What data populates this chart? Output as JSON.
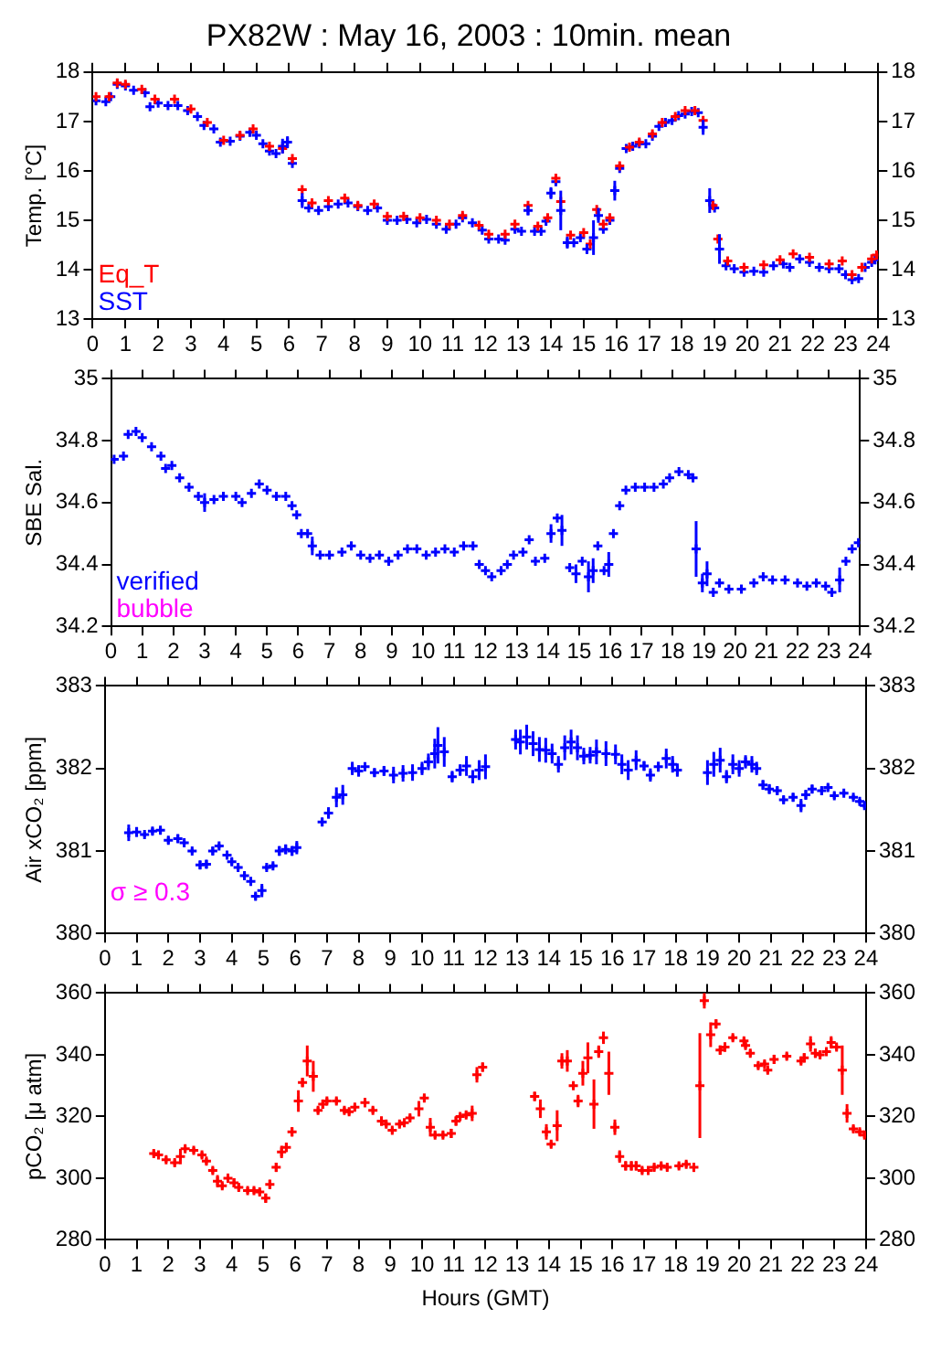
{
  "chart_data": [
    {
      "type": "scatter",
      "title": "PX82W : May 16, 2003 : 10min. mean",
      "ylabel": "Temp. [°C]",
      "xlim": [
        0,
        24
      ],
      "xticks": [
        0,
        1,
        2,
        3,
        4,
        5,
        6,
        7,
        8,
        9,
        10,
        11,
        12,
        13,
        14,
        15,
        16,
        17,
        18,
        19,
        20,
        21,
        22,
        23,
        24
      ],
      "ylim": [
        13,
        18
      ],
      "yticks": [
        13,
        14,
        15,
        16,
        17,
        18
      ],
      "y2lim": [
        13,
        18
      ],
      "y2ticks": [
        13,
        14,
        15,
        16,
        17,
        18
      ],
      "grid": false,
      "legend": "bottom left",
      "marker": "cross",
      "series": [
        {
          "name": "Eq_T",
          "color": "#ff0000",
          "x": [
            0.1,
            0.5,
            0.75,
            1.0,
            1.5,
            1.9,
            2.5,
            3.0,
            3.5,
            4.0,
            4.5,
            4.9,
            5.4,
            5.8,
            6.1,
            6.4,
            6.7,
            7.2,
            7.7,
            8.1,
            8.6,
            9.0,
            9.5,
            10.0,
            10.5,
            10.9,
            11.3,
            11.8,
            12.1,
            12.6,
            12.9,
            13.3,
            13.6,
            13.9,
            14.15,
            14.3,
            14.6,
            15.0,
            15.2,
            15.4,
            15.6,
            15.8,
            16.1,
            16.4,
            16.7,
            17.1,
            17.4,
            17.8,
            18.1,
            18.4,
            18.65,
            18.95,
            19.1,
            19.4,
            19.9,
            20.5,
            21.0,
            21.4,
            21.9,
            22.5,
            22.9,
            23.2,
            23.5,
            23.8,
            23.95
          ],
          "values": [
            17.5,
            17.5,
            17.78,
            17.75,
            17.65,
            17.45,
            17.45,
            17.25,
            16.98,
            16.62,
            16.72,
            16.85,
            16.5,
            16.45,
            16.25,
            15.62,
            15.35,
            15.4,
            15.45,
            15.3,
            15.33,
            15.08,
            15.08,
            15.05,
            15.0,
            14.92,
            15.1,
            14.9,
            14.72,
            14.72,
            14.92,
            15.3,
            14.88,
            15.05,
            15.85,
            15.38,
            14.7,
            14.75,
            14.52,
            15.22,
            14.92,
            15.05,
            16.1,
            16.48,
            16.58,
            16.75,
            16.98,
            17.1,
            17.22,
            17.22,
            17.02,
            15.3,
            14.62,
            14.18,
            14.05,
            14.1,
            14.2,
            14.32,
            14.25,
            14.12,
            14.18,
            13.9,
            14.05,
            14.22,
            14.3
          ]
        },
        {
          "name": "SST",
          "color": "#0000ff",
          "x": [
            0.1,
            0.4,
            0.55,
            0.75,
            1.0,
            1.25,
            1.6,
            1.75,
            2.0,
            2.3,
            2.6,
            2.9,
            3.2,
            3.4,
            3.7,
            3.9,
            4.2,
            4.5,
            4.8,
            5.0,
            5.2,
            5.4,
            5.6,
            5.8,
            5.95,
            6.1,
            6.4,
            6.6,
            6.9,
            7.2,
            7.5,
            7.8,
            8.1,
            8.4,
            8.7,
            9.0,
            9.3,
            9.6,
            9.9,
            10.2,
            10.5,
            10.8,
            11.1,
            11.3,
            11.6,
            11.9,
            12.1,
            12.4,
            12.6,
            12.9,
            13.1,
            13.3,
            13.5,
            13.7,
            13.85,
            14.0,
            14.15,
            14.3,
            14.5,
            14.7,
            14.9,
            15.1,
            15.3,
            15.45,
            15.6,
            15.8,
            15.95,
            16.1,
            16.3,
            16.5,
            16.7,
            16.9,
            17.1,
            17.3,
            17.5,
            17.7,
            17.9,
            18.1,
            18.3,
            18.5,
            18.65,
            18.85,
            19.0,
            19.15,
            19.35,
            19.6,
            19.9,
            20.2,
            20.5,
            20.8,
            21.1,
            21.3,
            21.6,
            21.9,
            22.2,
            22.5,
            22.8,
            23.0,
            23.2,
            23.4,
            23.6,
            23.8,
            23.9
          ],
          "values": [
            17.42,
            17.4,
            17.5,
            17.75,
            17.72,
            17.63,
            17.58,
            17.3,
            17.37,
            17.32,
            17.32,
            17.22,
            17.1,
            16.92,
            16.85,
            16.58,
            16.6,
            16.7,
            16.78,
            16.72,
            16.55,
            16.4,
            16.35,
            16.5,
            16.58,
            16.15,
            15.4,
            15.25,
            15.2,
            15.28,
            15.33,
            15.35,
            15.28,
            15.2,
            15.25,
            15.0,
            15.0,
            15.02,
            14.95,
            15.02,
            14.92,
            14.82,
            14.92,
            15.05,
            14.95,
            14.8,
            14.62,
            14.62,
            14.6,
            14.82,
            14.78,
            15.2,
            14.78,
            14.78,
            14.98,
            15.55,
            15.78,
            15.2,
            14.55,
            14.55,
            14.65,
            14.42,
            14.65,
            15.1,
            14.82,
            15.0,
            15.6,
            16.05,
            16.45,
            16.5,
            16.55,
            16.55,
            16.7,
            16.9,
            16.98,
            17.02,
            17.12,
            17.15,
            17.2,
            17.18,
            16.88,
            15.4,
            15.25,
            14.42,
            14.08,
            14.02,
            13.95,
            13.97,
            13.95,
            14.08,
            14.12,
            14.05,
            14.22,
            14.15,
            14.05,
            14.02,
            14.02,
            13.9,
            13.8,
            13.82,
            14.05,
            14.15,
            14.2
          ],
          "errors": [
            null,
            null,
            null,
            null,
            null,
            null,
            null,
            null,
            null,
            null,
            null,
            null,
            null,
            null,
            null,
            null,
            null,
            null,
            null,
            null,
            null,
            null,
            null,
            0.15,
            0.12,
            null,
            0.15,
            null,
            null,
            null,
            null,
            null,
            null,
            null,
            null,
            null,
            null,
            null,
            null,
            null,
            null,
            null,
            null,
            null,
            null,
            null,
            null,
            null,
            null,
            null,
            null,
            0.1,
            null,
            null,
            null,
            0.12,
            null,
            0.4,
            0.12,
            null,
            null,
            0.1,
            0.35,
            0.15,
            null,
            null,
            0.2,
            null,
            null,
            null,
            null,
            null,
            null,
            null,
            null,
            null,
            null,
            null,
            null,
            null,
            0.15,
            0.25,
            null,
            0.3,
            null,
            null,
            null,
            null,
            null,
            null,
            null,
            null,
            null,
            null,
            null,
            null,
            null,
            null,
            null,
            null,
            null,
            null,
            null
          ]
        }
      ]
    },
    {
      "type": "scatter",
      "ylabel": "SBE Sal.",
      "xlim": [
        0,
        24
      ],
      "xticks": [
        0,
        1,
        2,
        3,
        4,
        5,
        6,
        7,
        8,
        9,
        10,
        11,
        12,
        13,
        14,
        15,
        16,
        17,
        18,
        19,
        20,
        21,
        22,
        23,
        24
      ],
      "ylim": [
        34.2,
        35
      ],
      "yticks": [
        {
          "value": 34.2,
          "label": "34.2"
        },
        {
          "value": 34.4,
          "label": "34.4"
        },
        {
          "value": 34.6,
          "label": "34.6"
        },
        {
          "value": 34.8,
          "label": "34.8"
        },
        35
      ],
      "y2lim": [
        34.2,
        35
      ],
      "y2ticks": [
        {
          "value": 34.2,
          "label": "34.2"
        },
        {
          "value": 34.4,
          "label": "34.4"
        },
        {
          "value": 34.6,
          "label": "34.6"
        },
        {
          "value": 34.8,
          "label": "34.8"
        },
        35
      ],
      "grid": false,
      "legend": "bottom left",
      "marker": "cross",
      "series": [
        {
          "name": "verified",
          "color": "#0000ff",
          "x": [
            0.1,
            0.4,
            0.55,
            0.8,
            1.0,
            1.3,
            1.6,
            1.75,
            1.95,
            2.2,
            2.5,
            2.8,
            3.0,
            3.3,
            3.6,
            4.0,
            4.2,
            4.5,
            4.75,
            5.0,
            5.3,
            5.6,
            5.8,
            5.95,
            6.1,
            6.3,
            6.45,
            6.7,
            7.0,
            7.4,
            7.7,
            8.0,
            8.3,
            8.6,
            8.9,
            9.2,
            9.5,
            9.8,
            10.1,
            10.4,
            10.7,
            11.0,
            11.3,
            11.6,
            11.8,
            12.0,
            12.2,
            12.5,
            12.7,
            12.9,
            13.2,
            13.4,
            13.6,
            13.9,
            14.1,
            14.3,
            14.45,
            14.7,
            14.9,
            15.1,
            15.3,
            15.45,
            15.6,
            15.8,
            15.95,
            16.1,
            16.3,
            16.5,
            16.8,
            17.1,
            17.4,
            17.7,
            17.9,
            18.2,
            18.5,
            18.65,
            18.75,
            18.95,
            19.1,
            19.3,
            19.5,
            19.8,
            20.2,
            20.6,
            20.9,
            21.2,
            21.6,
            22.0,
            22.3,
            22.6,
            22.9,
            23.1,
            23.35,
            23.55,
            23.75,
            23.95
          ],
          "values": [
            34.74,
            34.75,
            34.82,
            34.83,
            34.81,
            34.78,
            34.75,
            34.71,
            34.72,
            34.68,
            34.65,
            34.62,
            34.6,
            34.61,
            34.62,
            34.62,
            34.6,
            34.63,
            34.66,
            34.64,
            34.62,
            34.62,
            34.59,
            34.56,
            34.5,
            34.5,
            34.46,
            34.43,
            34.43,
            34.44,
            34.46,
            34.43,
            34.42,
            34.43,
            34.41,
            34.43,
            34.45,
            34.45,
            34.43,
            34.44,
            34.45,
            34.44,
            34.46,
            34.46,
            34.4,
            34.38,
            34.36,
            34.38,
            34.4,
            34.43,
            34.44,
            34.48,
            34.41,
            34.42,
            34.5,
            34.55,
            34.51,
            34.39,
            34.37,
            34.41,
            34.36,
            34.38,
            34.46,
            34.38,
            34.4,
            34.5,
            34.59,
            34.64,
            34.65,
            34.65,
            34.65,
            34.66,
            34.68,
            34.7,
            34.69,
            34.68,
            34.45,
            34.34,
            34.37,
            34.31,
            34.34,
            34.32,
            34.32,
            34.34,
            34.36,
            34.35,
            34.35,
            34.34,
            34.33,
            34.34,
            34.33,
            34.31,
            34.35,
            34.41,
            34.45,
            34.47
          ],
          "errors": [
            null,
            null,
            null,
            null,
            null,
            null,
            null,
            null,
            null,
            null,
            null,
            null,
            0.03,
            null,
            null,
            null,
            null,
            null,
            null,
            null,
            null,
            null,
            null,
            null,
            null,
            null,
            0.03,
            null,
            null,
            null,
            null,
            null,
            null,
            null,
            null,
            null,
            null,
            null,
            null,
            null,
            null,
            null,
            null,
            null,
            null,
            null,
            null,
            null,
            null,
            null,
            null,
            null,
            null,
            null,
            0.03,
            null,
            0.05,
            null,
            0.03,
            null,
            0.05,
            0.04,
            null,
            null,
            0.04,
            null,
            null,
            null,
            null,
            null,
            null,
            null,
            null,
            null,
            null,
            null,
            0.09,
            0.03,
            0.04,
            null,
            null,
            null,
            null,
            null,
            null,
            null,
            null,
            null,
            null,
            null,
            null,
            null,
            0.04,
            null,
            null,
            null
          ]
        },
        {
          "name": "bubble",
          "color": "#ff00ff"
        }
      ]
    },
    {
      "type": "scatter",
      "ylabel": "Air xCO₂ [ppm]",
      "xlim": [
        0,
        24
      ],
      "xticks": [
        0,
        1,
        2,
        3,
        4,
        5,
        6,
        7,
        8,
        9,
        10,
        11,
        12,
        13,
        14,
        15,
        16,
        17,
        18,
        19,
        20,
        21,
        22,
        23,
        24
      ],
      "ylim": [
        380,
        383
      ],
      "yticks": [
        380,
        381,
        382,
        383
      ],
      "y2lim": [
        380,
        383
      ],
      "y2ticks": [
        380,
        381,
        382,
        383
      ],
      "grid": false,
      "marker": "cross",
      "annotations": [
        "σ ≥ 0.3"
      ],
      "series": [
        {
          "color": "#0000ff",
          "x": [
            0.75,
            1.0,
            1.25,
            1.5,
            1.75,
            2.0,
            2.3,
            2.5,
            2.75,
            3.0,
            3.2,
            3.4,
            3.6,
            3.85,
            4.0,
            4.2,
            4.4,
            4.6,
            4.75,
            4.95,
            5.1,
            5.3,
            5.5,
            5.7,
            5.9,
            6.05,
            6.85,
            7.05,
            7.3,
            7.5,
            7.8,
            8.0,
            8.2,
            8.5,
            8.8,
            9.1,
            9.4,
            9.7,
            10.0,
            10.2,
            10.4,
            10.5,
            10.7,
            10.95,
            11.2,
            11.4,
            11.6,
            11.8,
            12.0,
            12.95,
            13.1,
            13.3,
            13.5,
            13.7,
            13.9,
            14.1,
            14.3,
            14.5,
            14.7,
            14.9,
            15.1,
            15.3,
            15.5,
            15.8,
            16.1,
            16.3,
            16.5,
            16.75,
            17.0,
            17.2,
            17.45,
            17.7,
            17.9,
            18.05,
            19.0,
            19.2,
            19.4,
            19.6,
            19.8,
            20.0,
            20.2,
            20.4,
            20.55,
            20.75,
            20.95,
            21.2,
            21.4,
            21.7,
            21.95,
            22.1,
            22.3,
            22.6,
            22.8,
            23.0,
            23.3,
            23.6,
            23.8,
            23.95
          ],
          "values": [
            381.22,
            381.23,
            381.2,
            381.24,
            381.25,
            381.13,
            381.15,
            381.1,
            381.0,
            380.83,
            380.84,
            381.0,
            381.06,
            380.95,
            380.87,
            380.8,
            380.7,
            380.63,
            380.45,
            380.52,
            380.8,
            380.82,
            381.0,
            381.02,
            381.0,
            381.04,
            381.35,
            381.46,
            381.65,
            381.68,
            382.0,
            381.97,
            382.02,
            381.95,
            381.97,
            381.92,
            381.94,
            381.95,
            382.0,
            382.08,
            382.18,
            382.28,
            382.2,
            381.9,
            381.98,
            382.03,
            381.9,
            381.98,
            382.02,
            382.35,
            382.32,
            382.38,
            382.3,
            382.23,
            382.22,
            382.18,
            382.05,
            382.25,
            382.32,
            382.25,
            382.15,
            382.16,
            382.2,
            382.18,
            382.17,
            382.05,
            381.98,
            382.1,
            382.03,
            381.92,
            382.02,
            382.12,
            382.05,
            381.98,
            381.95,
            382.05,
            382.1,
            381.9,
            382.05,
            382.0,
            382.08,
            382.05,
            382.0,
            381.8,
            381.75,
            381.73,
            381.62,
            381.65,
            381.55,
            381.68,
            381.75,
            381.73,
            381.77,
            381.67,
            381.7,
            381.65,
            381.6,
            381.55
          ],
          "errors": [
            0.1,
            0.06,
            0.03,
            0.04,
            0.04,
            0.04,
            0.05,
            0.03,
            0.03,
            0.05,
            0.05,
            0.05,
            0.03,
            0.03,
            0.04,
            0.03,
            0.04,
            0.04,
            0.04,
            0.08,
            0.03,
            0.03,
            0.06,
            0.06,
            0.06,
            0.08,
            0.05,
            0.07,
            0.12,
            0.12,
            0.08,
            0.07,
            0.05,
            0.05,
            0.06,
            0.1,
            0.1,
            0.1,
            0.08,
            0.1,
            0.18,
            0.22,
            0.18,
            0.07,
            0.07,
            0.12,
            0.08,
            0.12,
            0.15,
            0.12,
            0.15,
            0.15,
            0.15,
            0.15,
            0.15,
            0.12,
            0.1,
            0.15,
            0.15,
            0.15,
            0.1,
            0.1,
            0.15,
            0.15,
            0.12,
            0.12,
            0.12,
            0.12,
            0.06,
            0.08,
            0.06,
            0.12,
            0.1,
            0.08,
            0.15,
            0.15,
            0.15,
            0.08,
            0.12,
            0.1,
            0.08,
            0.1,
            0.08,
            0.06,
            0.06,
            0.05,
            0.04,
            0.05,
            0.08,
            0.06,
            0.05,
            0.05,
            0.04,
            0.04,
            0.03,
            0.03,
            0.03,
            0.03
          ]
        }
      ]
    },
    {
      "type": "scatter",
      "ylabel": "pCO₂ [μ atm]",
      "xlabel": "Hours (GMT)",
      "xlim": [
        0,
        24
      ],
      "xticks": [
        0,
        1,
        2,
        3,
        4,
        5,
        6,
        7,
        8,
        9,
        10,
        11,
        12,
        13,
        14,
        15,
        16,
        17,
        18,
        19,
        20,
        21,
        22,
        23,
        24
      ],
      "ylim": [
        280,
        360
      ],
      "yticks": [
        280,
        300,
        320,
        340,
        360
      ],
      "y2lim": [
        280,
        360
      ],
      "y2ticks": [
        280,
        300,
        320,
        340,
        360
      ],
      "grid": false,
      "marker": "cross",
      "series": [
        {
          "color": "#ff0000",
          "x": [
            1.54,
            1.69,
            1.93,
            2.2,
            2.38,
            2.53,
            2.8,
            3.06,
            3.2,
            3.4,
            3.55,
            3.7,
            3.88,
            4.07,
            4.22,
            4.5,
            4.7,
            4.88,
            5.07,
            5.2,
            5.4,
            5.57,
            5.72,
            5.9,
            6.1,
            6.23,
            6.38,
            6.57,
            6.72,
            6.87,
            7.0,
            7.3,
            7.55,
            7.7,
            7.88,
            8.2,
            8.45,
            8.72,
            8.87,
            9.06,
            9.29,
            9.44,
            9.62,
            9.9,
            10.07,
            10.26,
            10.41,
            10.66,
            10.92,
            11.07,
            11.2,
            11.39,
            11.58,
            11.73,
            11.91,
            13.55,
            13.73,
            13.92,
            14.07,
            14.26,
            14.41,
            14.58,
            14.77,
            14.92,
            15.07,
            15.23,
            15.42,
            15.57,
            15.72,
            15.89,
            16.08,
            16.23,
            16.42,
            16.6,
            16.75,
            16.94,
            17.13,
            17.32,
            17.54,
            17.73,
            18.1,
            18.33,
            18.57,
            18.76,
            18.9,
            19.1,
            19.27,
            19.4,
            19.55,
            19.8,
            20.15,
            20.2,
            20.35,
            20.6,
            20.8,
            20.9,
            21.1,
            21.5,
            21.95,
            22.05,
            22.25,
            22.4,
            22.55,
            22.75,
            22.9,
            23.07,
            23.25,
            23.4,
            23.6,
            23.8,
            23.95
          ],
          "values": [
            308,
            307.5,
            306,
            305,
            307,
            309.5,
            309,
            307.5,
            305.5,
            302.5,
            299,
            297.5,
            300,
            298.5,
            297,
            296,
            296,
            295.5,
            293.5,
            298,
            303.5,
            308.5,
            310,
            315,
            325,
            331,
            338,
            333,
            322,
            324,
            325,
            325,
            322,
            321.5,
            323,
            324.5,
            322,
            318.5,
            317.5,
            315.5,
            317.5,
            318,
            319.5,
            322.5,
            326,
            316.5,
            314,
            314,
            314.5,
            318.5,
            320,
            320.5,
            321,
            333.5,
            336,
            326.5,
            322.5,
            315,
            311,
            317,
            338,
            338,
            330,
            325,
            334,
            339,
            324,
            341,
            345.5,
            334,
            316.5,
            307,
            304,
            304,
            304,
            302.5,
            302.5,
            303.5,
            304,
            303.5,
            304,
            304.5,
            303.5,
            330,
            357.5,
            346.5,
            350,
            341.5,
            342.5,
            345.5,
            344.5,
            343,
            340.5,
            336.5,
            337,
            335,
            338.5,
            339.5,
            338,
            339,
            343.5,
            340.5,
            340,
            341,
            344,
            342.5,
            335,
            321,
            316,
            315,
            314
          ],
          "errors": [
            1,
            1,
            1,
            1,
            2.5,
            1,
            1,
            1,
            1,
            1,
            2,
            1,
            1.5,
            1.5,
            1,
            1,
            1,
            1,
            1.5,
            1.5,
            1.5,
            2,
            1.5,
            1.5,
            3.5,
            1.5,
            5,
            5,
            1,
            1.5,
            1,
            1,
            1,
            1,
            1,
            1.5,
            1,
            1.5,
            1,
            1,
            1,
            1,
            1,
            2.5,
            1,
            3,
            1,
            1,
            1.5,
            1.5,
            1,
            1,
            2.5,
            2.5,
            1.5,
            1.5,
            3,
            2.5,
            1,
            5,
            2.5,
            3.5,
            1,
            2,
            4,
            5,
            8,
            2,
            2,
            7,
            2.5,
            2,
            1.5,
            1.5,
            1.5,
            1,
            1,
            1,
            1,
            1,
            1,
            1,
            1.5,
            17,
            2.5,
            4,
            1.5,
            1.5,
            1.5,
            1,
            1,
            1,
            1,
            1,
            1,
            1,
            1.5,
            1,
            1,
            1.5,
            2.5,
            1.5,
            1,
            1,
            2,
            1,
            8,
            3,
            1,
            1,
            1
          ]
        }
      ]
    }
  ]
}
